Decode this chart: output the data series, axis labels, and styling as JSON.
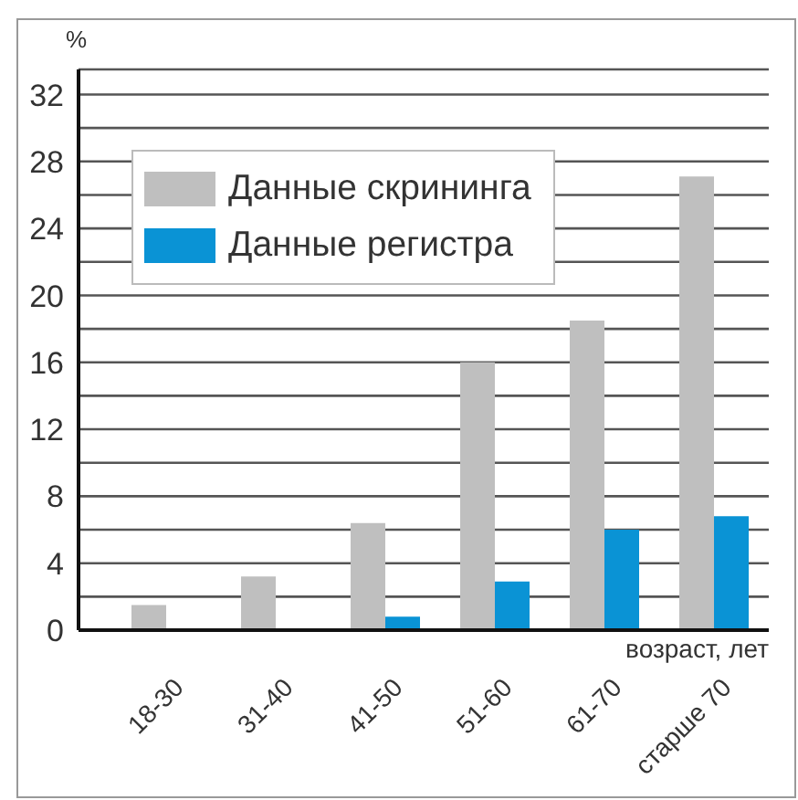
{
  "chart_data": {
    "type": "bar",
    "ylabel": "%",
    "xlabel": "возраст, лет",
    "categories": [
      "18-30",
      "31-40",
      "41-50",
      "51-60",
      "61-70",
      "старше 70"
    ],
    "series": [
      {
        "name": "Данные скрининга",
        "color": "#bfbfbf",
        "values": [
          1.5,
          3.2,
          6.4,
          16,
          18.5,
          27.1
        ]
      },
      {
        "name": "Данные регистра",
        "color": "#0a93d5",
        "values": [
          null,
          null,
          0.8,
          2.9,
          6.0,
          6.8
        ]
      }
    ],
    "ylim": [
      0,
      33.5
    ],
    "yticks": [
      0,
      {
        "value": 2,
        "label": null
      },
      4,
      {
        "value": 6,
        "label": null
      },
      8,
      {
        "value": 10,
        "label": null
      },
      12,
      {
        "value": 14,
        "label": null
      },
      16,
      {
        "value": 18,
        "label": null
      },
      20,
      {
        "value": 22,
        "label": null
      },
      24,
      {
        "value": 26,
        "label": null
      },
      28,
      {
        "value": 30,
        "label": null
      },
      32
    ],
    "grid": "y",
    "legend": "top left"
  }
}
